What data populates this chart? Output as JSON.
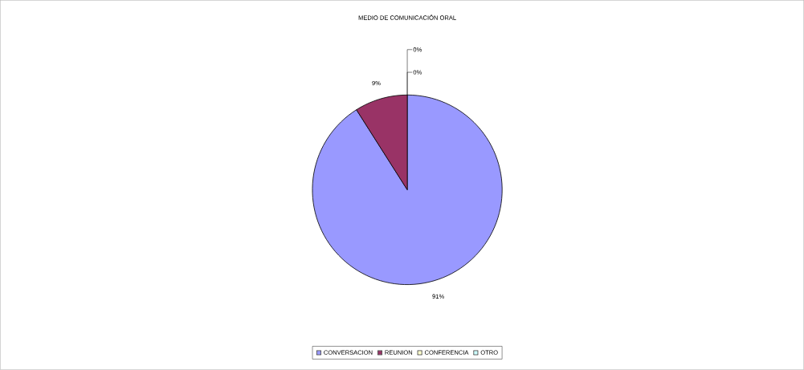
{
  "chart_data": {
    "type": "pie",
    "title": "MEDIO DE COMUNICACIÓN ORAL",
    "categories": [
      "CONVERSACION",
      "REUNION",
      "CONFERENCIA",
      "OTRO"
    ],
    "values": [
      91,
      9,
      0,
      0
    ],
    "colors": [
      "#9999ff",
      "#993366",
      "#ffffcc",
      "#ccffff"
    ],
    "value_labels": [
      "91%",
      "9%",
      "0%",
      "0%"
    ],
    "legend": "bottom"
  }
}
